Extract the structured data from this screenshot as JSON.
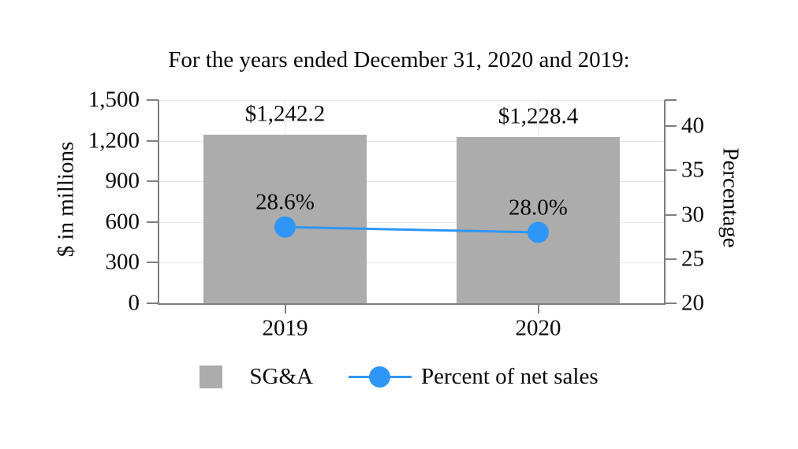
{
  "chart_data": {
    "type": "bar-line-combo",
    "title": "For the years ended December 31, 2020 and 2019:",
    "categories": [
      "2019",
      "2020"
    ],
    "series": [
      {
        "name": "SG&A",
        "type": "bar",
        "axis": "left",
        "values": [
          1242.2,
          1228.4
        ],
        "value_labels": [
          "$1,242.2",
          "$1,228.4"
        ],
        "color": "#ACACAC"
      },
      {
        "name": "Percent of net sales",
        "type": "line",
        "axis": "right",
        "values": [
          28.6,
          28.0
        ],
        "value_labels": [
          "28.6%",
          "28.0%"
        ],
        "color": "#2E96F6"
      }
    ],
    "left_axis": {
      "label": "$ in millions",
      "min": 0,
      "max": 1500,
      "tick_values": [
        1500,
        1200,
        900,
        600,
        300,
        0
      ],
      "tick_labels": [
        "1,500",
        "1,200",
        "900",
        "600",
        "300",
        "0"
      ]
    },
    "right_axis": {
      "label": "Percentage",
      "min": 20,
      "tick_values": [
        40,
        35,
        30,
        25,
        20
      ],
      "tick_labels": [
        "40",
        "35",
        "30",
        "25",
        "20"
      ]
    },
    "grid": true,
    "legend_position": "bottom"
  },
  "colors": {
    "bar": "#ACACAC",
    "line": "#2E96F6",
    "axis": "#7F7F7F",
    "grid": "#E7E7E7",
    "text": "#0A0A0A",
    "background": "#FFFFFF"
  }
}
